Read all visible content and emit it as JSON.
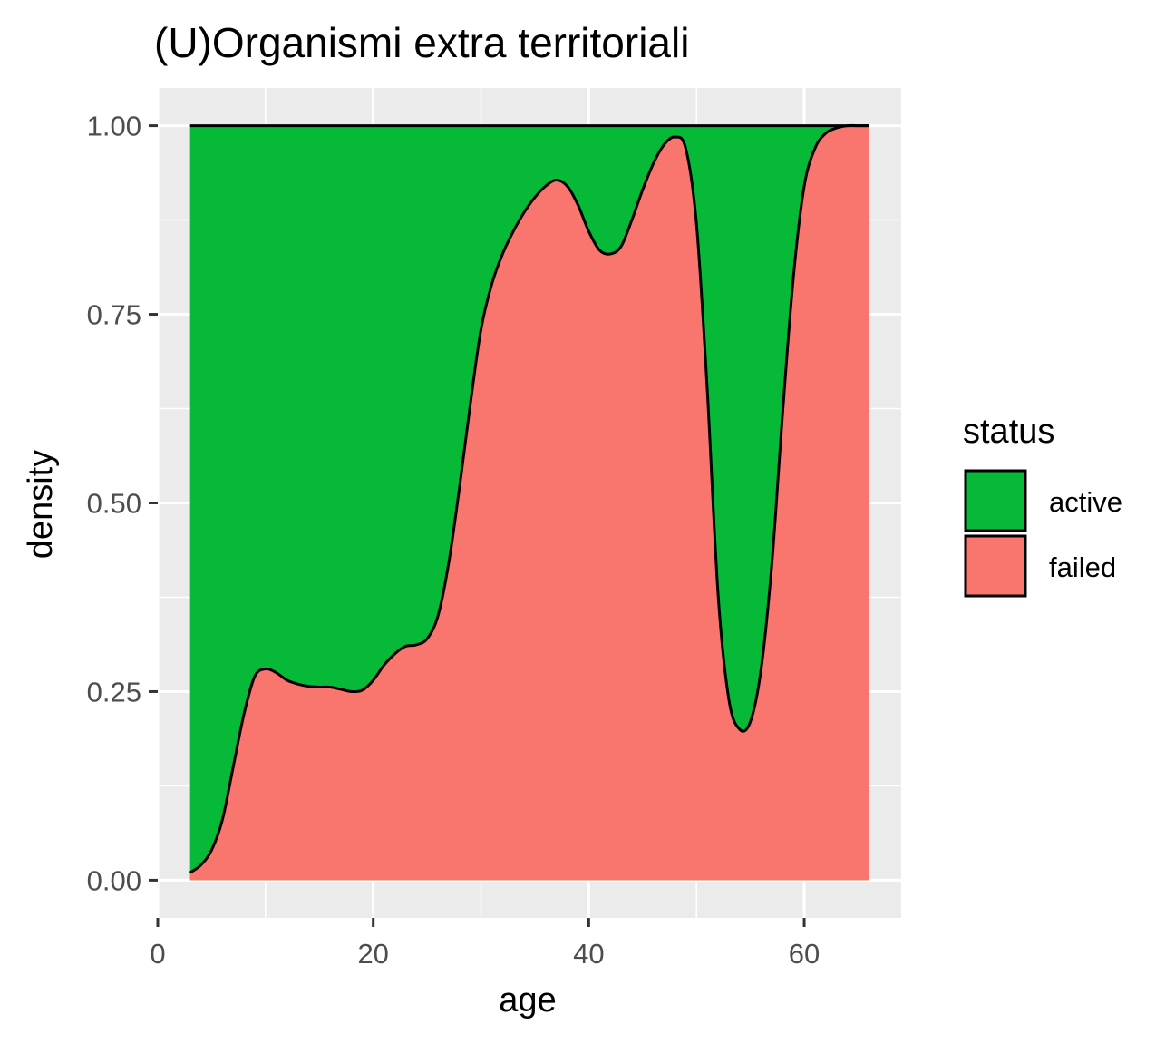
{
  "chart_data": {
    "type": "area",
    "subtype": "stacked-fill-density",
    "title": "(U)Organismi extra territoriali",
    "xlabel": "age",
    "ylabel": "density",
    "xlim": [
      0,
      69
    ],
    "ylim": [
      -0.05,
      1.05
    ],
    "x_ticks": [
      0,
      20,
      40,
      60
    ],
    "x_tick_labels": [
      "0",
      "20",
      "40",
      "60"
    ],
    "y_ticks": [
      0,
      0.25,
      0.5,
      0.75,
      1
    ],
    "y_tick_labels": [
      "0.00",
      "0.25",
      "0.50",
      "0.75",
      "1.00"
    ],
    "grid": true,
    "legend": {
      "title": "status",
      "position": "right",
      "entries": [
        "active",
        "failed"
      ]
    },
    "colors": {
      "active": "#06BA38",
      "failed": "#F8766D",
      "panel": "#EBEBEB",
      "grid": "#FFFFFF",
      "outline": "#000000"
    },
    "x_range": [
      3,
      66
    ],
    "series": [
      {
        "name": "active",
        "values_note": "fills from the failed curve up to 1.00"
      },
      {
        "name": "failed",
        "x": [
          3,
          4,
          5,
          6,
          7,
          8,
          9,
          10,
          11,
          12,
          13,
          14,
          15,
          16,
          17,
          18,
          19,
          20,
          21,
          22,
          23,
          24,
          25,
          26,
          27,
          28,
          29,
          30,
          31,
          32,
          33,
          34,
          35,
          36,
          37,
          38,
          39,
          40,
          41,
          42,
          43,
          44,
          45,
          46,
          47,
          48,
          49,
          50,
          51,
          52,
          53,
          54,
          55,
          56,
          57,
          58,
          59,
          60,
          61,
          62,
          63,
          64,
          65,
          66
        ],
        "values": [
          0.01,
          0.02,
          0.04,
          0.08,
          0.15,
          0.22,
          0.27,
          0.28,
          0.275,
          0.265,
          0.26,
          0.257,
          0.256,
          0.256,
          0.253,
          0.25,
          0.252,
          0.265,
          0.285,
          0.3,
          0.31,
          0.312,
          0.32,
          0.35,
          0.42,
          0.52,
          0.63,
          0.73,
          0.79,
          0.83,
          0.86,
          0.885,
          0.905,
          0.92,
          0.928,
          0.92,
          0.895,
          0.86,
          0.835,
          0.83,
          0.84,
          0.875,
          0.915,
          0.95,
          0.975,
          0.985,
          0.97,
          0.87,
          0.65,
          0.38,
          0.24,
          0.2,
          0.21,
          0.28,
          0.42,
          0.62,
          0.8,
          0.92,
          0.97,
          0.99,
          0.997,
          1.0,
          1.0,
          1.0
        ]
      }
    ]
  }
}
